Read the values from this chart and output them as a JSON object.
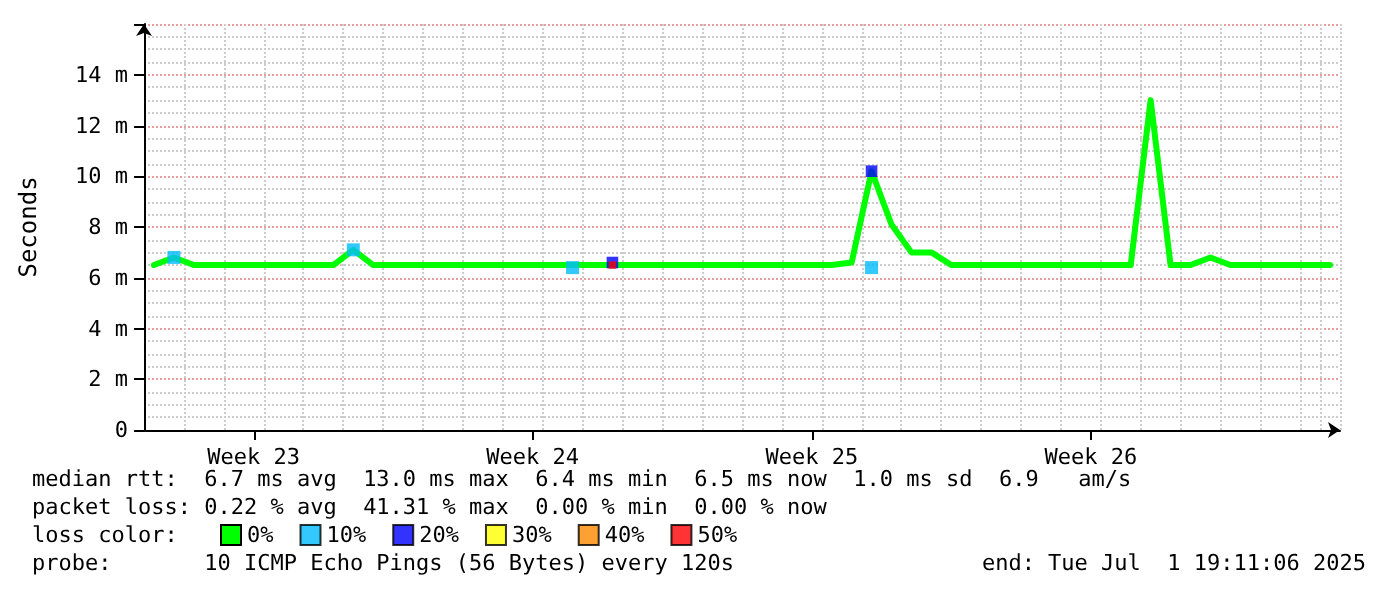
{
  "chart_data": {
    "type": "line",
    "ylabel": "Seconds",
    "legend_title": "loss color:",
    "categories": [
      null,
      null,
      null,
      null,
      null,
      "Week 23",
      null,
      null,
      null,
      null,
      null,
      null,
      null,
      null,
      null,
      null,
      null,
      null,
      null,
      "Week 24",
      null,
      null,
      null,
      null,
      null,
      null,
      null,
      null,
      null,
      null,
      null,
      null,
      null,
      "Week 25",
      null,
      null,
      null,
      null,
      null,
      null,
      null,
      null,
      null,
      null,
      null,
      null,
      null,
      "Week 26",
      null,
      null,
      null,
      null,
      null,
      null,
      null,
      null,
      null,
      null,
      null,
      null
    ],
    "ylim": [
      0,
      16
    ],
    "yticks": [
      0,
      {
        "value": 2,
        "label": "2 m"
      },
      {
        "value": 4,
        "label": "4 m"
      },
      {
        "value": 6,
        "label": "6 m"
      },
      {
        "value": 8,
        "label": "8 m"
      },
      {
        "value": 10,
        "label": "10 m"
      },
      {
        "value": 12,
        "label": "12 m"
      },
      {
        "value": 14,
        "label": "14 m"
      }
    ],
    "grid": true,
    "legend": "bottom left",
    "series": [
      {
        "name": "0%",
        "marker": "none",
        "color": "#00ff00",
        "values": [
          6.5,
          6.8,
          6.5,
          6.5,
          6.5,
          6.5,
          6.5,
          6.5,
          6.5,
          6.5,
          7.1,
          6.5,
          6.5,
          6.5,
          6.5,
          6.5,
          6.5,
          6.5,
          6.5,
          6.5,
          6.5,
          6.5,
          6.5,
          6.5,
          6.5,
          6.5,
          6.5,
          6.5,
          6.5,
          6.5,
          6.5,
          6.5,
          6.5,
          6.5,
          6.5,
          6.6,
          10.2,
          8.1,
          7.0,
          7.0,
          6.5,
          6.5,
          6.5,
          6.5,
          6.5,
          6.5,
          6.5,
          6.5,
          6.5,
          6.5,
          13.0,
          6.5,
          6.5,
          6.8,
          6.5,
          6.5,
          6.5,
          6.5,
          6.5,
          6.5
        ]
      },
      {
        "name": "10%",
        "type": "scatter",
        "marker": "square",
        "color": "#00bbff",
        "values": [
          null,
          6.8,
          null,
          null,
          null,
          null,
          null,
          null,
          null,
          null,
          7.1,
          null,
          null,
          null,
          null,
          null,
          null,
          null,
          null,
          null,
          null,
          6.4,
          null,
          null,
          null,
          null,
          null,
          null,
          null,
          null,
          null,
          null,
          null,
          null,
          null,
          null,
          6.4,
          null,
          null,
          null,
          null,
          null,
          null,
          null,
          null,
          null,
          null,
          null,
          null,
          null,
          null,
          null,
          null,
          null,
          null,
          null,
          null,
          null,
          null,
          null
        ]
      },
      {
        "name": "20%",
        "type": "scatter",
        "marker": "square",
        "color": "#0000ff",
        "values": [
          null,
          null,
          null,
          null,
          null,
          null,
          null,
          null,
          null,
          null,
          null,
          null,
          null,
          null,
          null,
          null,
          null,
          null,
          null,
          null,
          null,
          null,
          null,
          6.6,
          null,
          null,
          null,
          null,
          null,
          null,
          null,
          null,
          null,
          null,
          null,
          null,
          10.2,
          null,
          null,
          null,
          null,
          null,
          null,
          null,
          null,
          null,
          null,
          null,
          null,
          null,
          null,
          null,
          null,
          null,
          null,
          null,
          null,
          null,
          null,
          null
        ]
      },
      {
        "name": "30%",
        "type": "scatter",
        "marker": "square",
        "color": "#ffff00",
        "values": [
          null,
          null,
          null,
          null,
          null,
          null,
          null,
          null,
          null,
          null,
          null,
          null,
          null,
          null,
          null,
          null,
          null,
          null,
          null,
          null,
          null,
          null,
          null,
          null,
          null,
          null,
          null,
          null,
          null,
          null,
          null,
          null,
          null,
          null,
          null,
          null,
          null,
          null,
          null,
          null,
          null,
          null,
          null,
          null,
          null,
          null,
          null,
          null,
          null,
          null,
          null,
          null,
          null,
          null,
          null,
          null,
          null,
          null,
          null,
          null
        ]
      },
      {
        "name": "40%",
        "type": "scatter",
        "marker": "square",
        "color": "#ff8800",
        "values": [
          null,
          null,
          null,
          null,
          null,
          null,
          null,
          null,
          null,
          null,
          null,
          null,
          null,
          null,
          null,
          null,
          null,
          null,
          null,
          null,
          null,
          null,
          null,
          null,
          null,
          null,
          null,
          null,
          null,
          null,
          null,
          null,
          null,
          null,
          null,
          null,
          null,
          null,
          null,
          null,
          null,
          null,
          null,
          null,
          null,
          null,
          null,
          null,
          null,
          null,
          null,
          null,
          null,
          null,
          null,
          null,
          null,
          null,
          null,
          null
        ]
      },
      {
        "name": "50%",
        "type": "scatter",
        "marker": "square",
        "color": "#ff0000",
        "values": [
          null,
          null,
          null,
          null,
          null,
          null,
          null,
          null,
          null,
          null,
          null,
          null,
          null,
          null,
          null,
          null,
          null,
          null,
          null,
          null,
          null,
          null,
          null,
          6.5,
          null,
          null,
          null,
          null,
          null,
          null,
          null,
          null,
          null,
          null,
          null,
          null,
          null,
          null,
          null,
          null,
          null,
          null,
          null,
          null,
          null,
          null,
          null,
          null,
          null,
          null,
          null,
          null,
          null,
          null,
          null,
          null,
          null,
          null,
          null,
          null
        ]
      }
    ],
    "annotations": [
      "median rtt:  6.7 ms avg  13.0 ms max  6.4 ms min  6.5 ms now  1.0 ms sd  6.9   am/s",
      "packet loss: 0.22 % avg  41.31 % max  0.00 % min  0.00 % now",
      "probe:       10 ICMP Echo Pings (56 Bytes) every 120s",
      "end: Tue Jul  1 19:11:06 2025"
    ]
  }
}
